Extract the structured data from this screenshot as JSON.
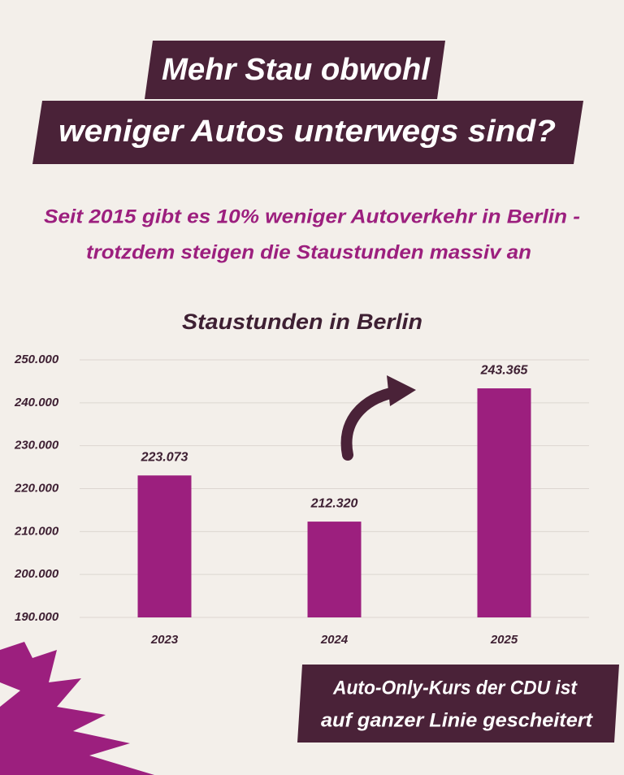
{
  "headline": [
    "Mehr Stau obwohl",
    "weniger Autos unterwegs sind?"
  ],
  "subheadline": [
    "Seit 2015 gibt es 10% weniger Autoverkehr in Berlin -",
    "trotzdem steigen die Staustunden massiv an"
  ],
  "callout": [
    "Auto-Only-Kurs der CDU ist",
    "auf ganzer Linie gescheitert"
  ],
  "chart_data": {
    "type": "bar",
    "title": "Staustunden in Berlin",
    "categories": [
      "2023",
      "2024",
      "2025"
    ],
    "values": [
      223073,
      212320,
      243365
    ],
    "value_labels": [
      "223.073",
      "212.320",
      "243.365"
    ],
    "color": "#9c1f7e",
    "ylim": [
      190000,
      250000
    ],
    "yticks": [
      {
        "value": 190000,
        "label": "190.000"
      },
      {
        "value": 200000,
        "label": "200.000"
      },
      {
        "value": 210000,
        "label": "210.000"
      },
      {
        "value": 220000,
        "label": "220.000"
      },
      {
        "value": 230000,
        "label": "230.000"
      },
      {
        "value": 240000,
        "label": "240.000"
      },
      {
        "value": 250000,
        "label": "250.000"
      }
    ],
    "grid": true
  }
}
